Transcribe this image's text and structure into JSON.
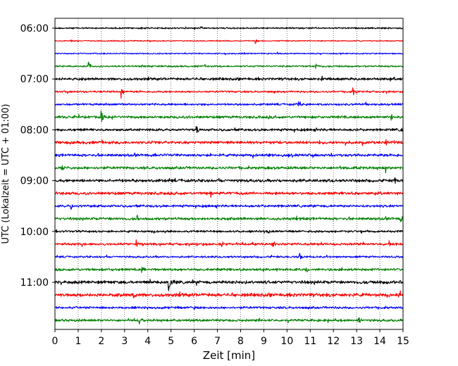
{
  "chart_data": {
    "type": "line",
    "title": "",
    "xlabel": "Zeit  [min]",
    "ylabel": "UTC (Lokalzeit = UTC + 01:00)",
    "xlim": [
      0,
      15
    ],
    "x_ticks": [
      0,
      1,
      2,
      3,
      4,
      5,
      6,
      7,
      8,
      9,
      10,
      11,
      12,
      13,
      14,
      15
    ],
    "y_tick_labels": [
      "06:00",
      "07:00",
      "08:00",
      "09:00",
      "10:00",
      "11:00"
    ],
    "grid": "vertical dotted lines at each minute",
    "trace_colors": [
      "#000000",
      "#ff0000",
      "#0000ff",
      "#008000"
    ],
    "series": [
      {
        "start": "06:00",
        "color": "#000000",
        "amplitude": 1.2,
        "events": [
          [
            3.7,
            1.5
          ]
        ]
      },
      {
        "start": "06:15",
        "color": "#ff0000",
        "amplitude": 0.8,
        "events": [
          [
            8.65,
            6
          ],
          [
            0.7,
            2
          ]
        ]
      },
      {
        "start": "06:30",
        "color": "#0000ff",
        "amplitude": 0.9,
        "events": [
          [
            9.6,
            2
          ]
        ]
      },
      {
        "start": "06:45",
        "color": "#008000",
        "amplitude": 1.3,
        "events": [
          [
            1.45,
            8
          ],
          [
            11.25,
            5
          ]
        ]
      },
      {
        "start": "07:00",
        "color": "#000000",
        "amplitude": 2.0,
        "events": [
          [
            11.5,
            3
          ]
        ]
      },
      {
        "start": "07:15",
        "color": "#ff0000",
        "amplitude": 1.4,
        "events": [
          [
            2.85,
            9
          ],
          [
            12.85,
            6
          ]
        ]
      },
      {
        "start": "07:30",
        "color": "#0000ff",
        "amplitude": 1.6,
        "events": [
          [
            10.5,
            4
          ]
        ]
      },
      {
        "start": "07:45",
        "color": "#008000",
        "amplitude": 2.0,
        "events": [
          [
            2.0,
            8
          ],
          [
            14.5,
            6
          ]
        ]
      },
      {
        "start": "08:00",
        "color": "#000000",
        "amplitude": 1.9,
        "events": [
          [
            6.1,
            9
          ],
          [
            14.95,
            5
          ]
        ]
      },
      {
        "start": "08:15",
        "color": "#ff0000",
        "amplitude": 2.2,
        "events": [
          [
            14.25,
            8
          ]
        ]
      },
      {
        "start": "08:30",
        "color": "#0000ff",
        "amplitude": 2.0,
        "events": [
          [
            9.8,
            3
          ]
        ]
      },
      {
        "start": "08:45",
        "color": "#008000",
        "amplitude": 2.0,
        "events": [
          [
            0.3,
            5
          ],
          [
            14.25,
            9
          ]
        ]
      },
      {
        "start": "09:00",
        "color": "#000000",
        "amplitude": 2.2,
        "events": [
          [
            14.65,
            7
          ]
        ]
      },
      {
        "start": "09:15",
        "color": "#ff0000",
        "amplitude": 2.2,
        "events": [
          [
            6.7,
            7
          ]
        ]
      },
      {
        "start": "09:30",
        "color": "#0000ff",
        "amplitude": 1.8,
        "events": [
          [
            0.7,
            6
          ]
        ]
      },
      {
        "start": "09:45",
        "color": "#008000",
        "amplitude": 2.0,
        "events": [
          [
            3.55,
            9
          ],
          [
            14.9,
            7
          ]
        ]
      },
      {
        "start": "10:00",
        "color": "#000000",
        "amplitude": 1.6,
        "events": [
          [
            9.2,
            3
          ]
        ]
      },
      {
        "start": "10:15",
        "color": "#ff0000",
        "amplitude": 1.8,
        "events": [
          [
            3.5,
            6
          ],
          [
            7.2,
            4
          ],
          [
            9.4,
            5
          ],
          [
            11.5,
            5
          ],
          [
            14.4,
            6
          ]
        ]
      },
      {
        "start": "10:30",
        "color": "#0000ff",
        "amplitude": 1.4,
        "events": [
          [
            10.55,
            8
          ]
        ]
      },
      {
        "start": "10:45",
        "color": "#008000",
        "amplitude": 1.9,
        "events": [
          [
            3.75,
            5
          ],
          [
            10.8,
            8
          ]
        ]
      },
      {
        "start": "11:00",
        "color": "#000000",
        "amplitude": 2.4,
        "events": [
          [
            4.9,
            14
          ]
        ]
      },
      {
        "start": "11:15",
        "color": "#ff0000",
        "amplitude": 2.6,
        "events": [
          [
            3.4,
            7
          ],
          [
            14.9,
            6
          ]
        ]
      },
      {
        "start": "11:30",
        "color": "#0000ff",
        "amplitude": 1.7,
        "events": [
          [
            6.0,
            3
          ]
        ]
      },
      {
        "start": "11:45",
        "color": "#008000",
        "amplitude": 1.8,
        "events": [
          [
            3.65,
            7
          ],
          [
            13.1,
            6
          ]
        ]
      }
    ]
  }
}
